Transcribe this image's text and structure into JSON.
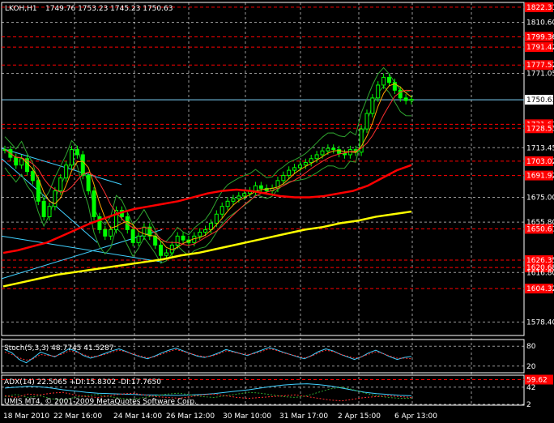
{
  "header": {
    "symbol": "LKOH,H1",
    "ohlc": "1749.76 1753.23 1745.23 1750.63"
  },
  "colors": {
    "background": "#000000",
    "grid": "#ffffff",
    "candle": "#00ff00",
    "level_line": "#ff0000",
    "level_tag": "#ff0000",
    "current_price_line": "#7fd8ff",
    "sma_red": "#ff0000",
    "sma_yellow": "#ffff00",
    "bollinger": "#2fa52f",
    "fast_ma": "#ffa500",
    "slow_ma": "#ff3030",
    "trendline": "#40d0ff",
    "stoch_main": "#40d0ff",
    "stoch_signal": "#ff3030",
    "adx": "#40d0ff"
  },
  "chart_data": [
    {
      "type": "candlestick",
      "name": "price",
      "y_ticks": [
        "1810.60",
        "1771.05",
        "1713.45",
        "1675.00",
        "1655.80",
        "1616.80",
        "1578.40"
      ],
      "current_price": "1750.63",
      "level_tags": [
        "1822.31",
        "1799.36",
        "1791.42",
        "1777.52",
        "1731.61",
        "1728.53",
        "1703.02",
        "1691.92",
        "1650.61",
        "1626.35",
        "1620.68",
        "1604.32"
      ],
      "x_labels": [
        "18 Mar 2010",
        "22 Mar 16:00",
        "24 Mar 14:00",
        "26 Mar 12:00",
        "30 Mar 10:00",
        "31 Mar 17:00",
        "2 Apr 15:00",
        "6 Apr 13:00"
      ],
      "ylim": [
        1568,
        1826
      ],
      "close_path": [
        1712,
        1706,
        1700,
        1705,
        1695,
        1688,
        1672,
        1660,
        1668,
        1680,
        1690,
        1700,
        1712,
        1708,
        1692,
        1680,
        1660,
        1650,
        1645,
        1650,
        1665,
        1660,
        1650,
        1640,
        1645,
        1652,
        1645,
        1638,
        1630,
        1632,
        1638,
        1645,
        1642,
        1640,
        1645,
        1648,
        1650,
        1655,
        1662,
        1668,
        1672,
        1674,
        1676,
        1678,
        1680,
        1684,
        1682,
        1680,
        1682,
        1688,
        1692,
        1696,
        1698,
        1700,
        1702,
        1705,
        1708,
        1711,
        1713,
        1712,
        1709,
        1708,
        1712,
        1710,
        1728,
        1740,
        1752,
        1762,
        1768,
        1764,
        1758,
        1752,
        1750,
        1751
      ],
      "sma_red_path": [
        1632,
        1634,
        1637,
        1640,
        1645,
        1650,
        1655,
        1659,
        1663,
        1666,
        1668,
        1670,
        1672,
        1675,
        1678,
        1680,
        1681,
        1680,
        1678,
        1676,
        1675,
        1675,
        1676,
        1678,
        1680,
        1684,
        1690,
        1696,
        1700
      ],
      "sma_yellow_path": [
        1606,
        1609,
        1612,
        1615,
        1617,
        1619,
        1621,
        1623,
        1625,
        1627,
        1630,
        1632,
        1635,
        1638,
        1641,
        1644,
        1647,
        1650,
        1652,
        1655,
        1657,
        1660,
        1662,
        1664
      ]
    },
    {
      "type": "line",
      "name": "stochastic",
      "title": "Stoch(5,3,3) 48.7745 41.5287",
      "y_ticks": [
        "80",
        "20"
      ],
      "ylim": [
        0,
        100
      ],
      "main": [
        70,
        60,
        40,
        30,
        45,
        62,
        55,
        48,
        60,
        72,
        65,
        52,
        44,
        50,
        58,
        66,
        72,
        64,
        55,
        48,
        42,
        50,
        60,
        68,
        74,
        66,
        58,
        50,
        46,
        52,
        60,
        70,
        64,
        58,
        52,
        60,
        68,
        76,
        70,
        62,
        55,
        48,
        42,
        52,
        64,
        72,
        66,
        56,
        48,
        40,
        48,
        60,
        68,
        58,
        48,
        40,
        46,
        49
      ],
      "signal": [
        62,
        55,
        45,
        38,
        42,
        55,
        52,
        50,
        56,
        66,
        62,
        55,
        48,
        50,
        55,
        62,
        68,
        63,
        56,
        50,
        45,
        48,
        56,
        64,
        70,
        64,
        58,
        52,
        48,
        50,
        57,
        66,
        62,
        58,
        54,
        58,
        64,
        72,
        68,
        60,
        55,
        50,
        45,
        50,
        60,
        68,
        64,
        56,
        50,
        44,
        48,
        56,
        63,
        58,
        50,
        44,
        44,
        42
      ]
    },
    {
      "type": "line",
      "name": "adx",
      "title": "ADX(14) 22.5065 +DI:15.8302 -DI:17.7650",
      "y_ticks": [
        "42",
        "2"
      ],
      "level_tag": "59.62",
      "ylim": [
        0,
        70
      ],
      "adx": [
        40,
        42,
        44,
        43,
        40,
        36,
        33,
        30,
        28,
        27,
        26,
        25,
        24,
        24,
        23,
        23,
        24,
        25,
        27,
        30,
        33,
        36,
        40,
        44,
        47,
        49,
        50,
        48,
        45,
        40,
        35,
        30,
        27,
        25,
        23,
        22
      ],
      "plus_di": [
        20,
        25,
        18,
        22,
        15,
        12,
        18,
        22,
        25,
        20,
        16,
        14,
        18,
        22,
        26,
        28,
        24,
        20,
        18,
        22,
        26,
        30,
        28,
        24,
        20,
        18,
        22,
        30,
        38,
        42,
        36,
        28,
        22,
        18,
        16,
        16
      ],
      "minus_di": [
        22,
        18,
        26,
        24,
        28,
        30,
        24,
        20,
        18,
        22,
        26,
        28,
        24,
        20,
        18,
        16,
        20,
        24,
        26,
        22,
        18,
        16,
        18,
        20,
        22,
        24,
        20,
        16,
        12,
        10,
        14,
        18,
        20,
        22,
        20,
        18
      ]
    }
  ],
  "footer": {
    "copyright": "UMIS MT4, © 2001-2009 MetaQuotes Software Corp."
  }
}
